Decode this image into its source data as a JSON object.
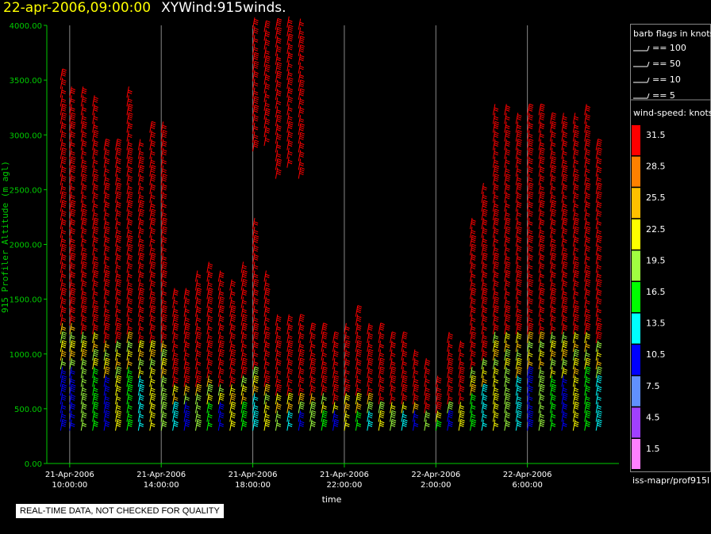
{
  "header": {
    "date_label": "22-apr-2006,09:00:00",
    "plot_label": "XYWind:915winds."
  },
  "colors": {
    "background": "#000000",
    "axis": "#00cc00",
    "grid": "#888888",
    "title_date": "#ffff00"
  },
  "chart_data": {
    "type": "scatter",
    "xlabel": "time",
    "ylabel": "915 Profiler Altitude (m agl)",
    "ylim": [
      0,
      4000
    ],
    "yticks": [
      "0.00",
      "500.00",
      "1000.00",
      "1500.00",
      "2000.00",
      "2500.00",
      "3000.00",
      "3500.00",
      "4000.00"
    ],
    "xlim_hours": [
      9.0,
      34.0
    ],
    "xticks": [
      {
        "date": "21-Apr-2006",
        "time": "10:00:00",
        "hour": 10
      },
      {
        "date": "21-Apr-2006",
        "time": "14:00:00",
        "hour": 14
      },
      {
        "date": "21-Apr-2006",
        "time": "18:00:00",
        "hour": 18
      },
      {
        "date": "21-Apr-2006",
        "time": "22:00:00",
        "hour": 22
      },
      {
        "date": "22-Apr-2006",
        "time": "2:00:00",
        "hour": 26
      },
      {
        "date": "22-Apr-2006",
        "time": "6:00:00",
        "hour": 30
      }
    ],
    "grid": "vertical lines at x ticks",
    "barb_direction_deg": 240,
    "wind_speed_scale": {
      "title": "wind-speed: knots",
      "levels": [
        {
          "value": "31.5",
          "color": "#ff0000"
        },
        {
          "value": "28.5",
          "color": "#ff8000"
        },
        {
          "value": "25.5",
          "color": "#ffc000"
        },
        {
          "value": "22.5",
          "color": "#ffff00"
        },
        {
          "value": "19.5",
          "color": "#a0ff40"
        },
        {
          "value": "16.5",
          "color": "#00ff00"
        },
        {
          "value": "13.5",
          "color": "#00ffff"
        },
        {
          "value": "10.5",
          "color": "#0000ff"
        },
        {
          "value": "7.5",
          "color": "#6090ff"
        },
        {
          "value": "4.5",
          "color": "#a040ff"
        },
        {
          "value": "1.5",
          "color": "#ff80ff"
        }
      ]
    },
    "barb_flags": {
      "title": "barb flags in knots",
      "entries": [
        "== 100",
        "== 50",
        "== 10",
        "== 5"
      ]
    },
    "profiles": [
      {
        "hour": 9.6,
        "bottom": 300,
        "top": 3550
      },
      {
        "hour": 10.0,
        "bottom": 300,
        "top": 3400
      },
      {
        "hour": 10.5,
        "bottom": 300,
        "top": 3350
      },
      {
        "hour": 11.0,
        "bottom": 300,
        "top": 3300
      },
      {
        "hour": 11.5,
        "bottom": 300,
        "top": 2900
      },
      {
        "hour": 12.0,
        "bottom": 300,
        "top": 2900
      },
      {
        "hour": 12.5,
        "bottom": 300,
        "top": 3350
      },
      {
        "hour": 13.0,
        "bottom": 300,
        "top": 2900
      },
      {
        "hour": 13.5,
        "bottom": 300,
        "top": 3050
      },
      {
        "hour": 14.0,
        "bottom": 300,
        "top": 3050
      },
      {
        "hour": 14.5,
        "bottom": 300,
        "top": 1500
      },
      {
        "hour": 15.0,
        "bottom": 300,
        "top": 1500
      },
      {
        "hour": 15.5,
        "bottom": 300,
        "top": 1700
      },
      {
        "hour": 16.0,
        "bottom": 300,
        "top": 1800
      },
      {
        "hour": 16.5,
        "bottom": 300,
        "top": 1700
      },
      {
        "hour": 17.0,
        "bottom": 300,
        "top": 1650
      },
      {
        "hour": 17.5,
        "bottom": 300,
        "top": 1800
      },
      {
        "hour": 18.0,
        "bottom": 300,
        "top": 2200
      },
      {
        "hour": 18.5,
        "bottom": 300,
        "top": 1700
      },
      {
        "hour": 19.0,
        "bottom": 300,
        "top": 1300
      },
      {
        "hour": 19.5,
        "bottom": 300,
        "top": 1300
      },
      {
        "hour": 20.0,
        "bottom": 300,
        "top": 1300
      },
      {
        "hour": 20.5,
        "bottom": 300,
        "top": 1250
      },
      {
        "hour": 21.0,
        "bottom": 300,
        "top": 1250
      },
      {
        "hour": 21.5,
        "bottom": 300,
        "top": 1150
      },
      {
        "hour": 22.0,
        "bottom": 300,
        "top": 1250
      },
      {
        "hour": 22.5,
        "bottom": 300,
        "top": 1350
      },
      {
        "hour": 23.0,
        "bottom": 300,
        "top": 1250
      },
      {
        "hour": 23.5,
        "bottom": 300,
        "top": 1200
      },
      {
        "hour": 24.0,
        "bottom": 300,
        "top": 1150
      },
      {
        "hour": 24.5,
        "bottom": 300,
        "top": 1100
      },
      {
        "hour": 25.0,
        "bottom": 300,
        "top": 1000
      },
      {
        "hour": 25.5,
        "bottom": 300,
        "top": 900
      },
      {
        "hour": 26.0,
        "bottom": 300,
        "top": 700
      },
      {
        "hour": 26.5,
        "bottom": 300,
        "top": 1100
      },
      {
        "hour": 27.0,
        "bottom": 300,
        "top": 1050
      },
      {
        "hour": 27.5,
        "bottom": 300,
        "top": 2200
      },
      {
        "hour": 28.0,
        "bottom": 300,
        "top": 2500
      },
      {
        "hour": 28.5,
        "bottom": 300,
        "top": 3200
      },
      {
        "hour": 29.0,
        "bottom": 300,
        "top": 3200
      },
      {
        "hour": 29.5,
        "bottom": 300,
        "top": 3150
      },
      {
        "hour": 30.0,
        "bottom": 300,
        "top": 3250
      },
      {
        "hour": 30.5,
        "bottom": 300,
        "top": 3200
      },
      {
        "hour": 31.0,
        "bottom": 300,
        "top": 3100
      },
      {
        "hour": 31.5,
        "bottom": 300,
        "top": 3150
      },
      {
        "hour": 32.0,
        "bottom": 300,
        "top": 3150
      },
      {
        "hour": 32.5,
        "bottom": 300,
        "top": 3200
      },
      {
        "hour": 33.0,
        "bottom": 300,
        "top": 2900
      }
    ],
    "upper_profiles": [
      {
        "hour": 18.0,
        "bottom": 2850,
        "top": 4000
      },
      {
        "hour": 18.5,
        "bottom": 2900,
        "top": 4000
      },
      {
        "hour": 19.0,
        "bottom": 2600,
        "top": 4000
      },
      {
        "hour": 19.5,
        "bottom": 2700,
        "top": 4000
      },
      {
        "hour": 20.0,
        "bottom": 2600,
        "top": 4000
      }
    ]
  },
  "footer": {
    "qc_note": "REAL-TIME DATA, NOT CHECKED FOR QUALITY",
    "station": "iss-mapr/prof915l"
  }
}
